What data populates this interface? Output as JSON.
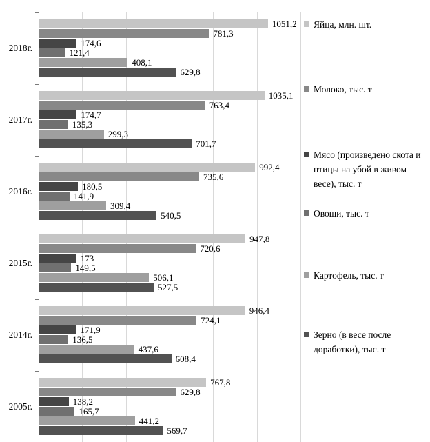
{
  "chart_data": {
    "type": "bar",
    "orientation": "horizontal",
    "title": "",
    "xlabel": "",
    "ylabel": "",
    "xlim": [
      0,
      1200
    ],
    "gridline_step": 200,
    "grid": "vertical gridlines on, light gray",
    "legend_position": "right",
    "value_decimal_separator": ",",
    "categories": [
      "2018г.",
      "2017г.",
      "2016г.",
      "2015г.",
      "2014г.",
      "2005г."
    ],
    "series": [
      {
        "name": "Яйца, млн. шт.",
        "color": "#c5c5c5",
        "values": [
          1051.2,
          1035.1,
          992.4,
          947.8,
          946.4,
          767.8
        ],
        "labels": [
          "1051,2",
          "1035,1",
          "992,4",
          "947,8",
          "946,4",
          "767,8"
        ]
      },
      {
        "name": "Молоко, тыс. т",
        "color": "#888888",
        "values": [
          781.3,
          763.4,
          735.6,
          720.6,
          724.1,
          629.8
        ],
        "labels": [
          "781,3",
          "763,4",
          "735,6",
          "720,6",
          "724,1",
          "629,8"
        ]
      },
      {
        "name": "Мясо (произведено скота и птицы на убой в живом весе), тыс. т",
        "color": "#454545",
        "values": [
          174.6,
          174.7,
          180.5,
          173,
          171.9,
          138.2
        ],
        "labels": [
          "174,6",
          "174,7",
          "180,5",
          "173",
          "171,9",
          "138,2"
        ]
      },
      {
        "name": "Овощи, тыс. т",
        "color": "#707070",
        "values": [
          121.4,
          135.3,
          141.9,
          149.5,
          136.5,
          165.7
        ],
        "labels": [
          "121,4",
          "135,3",
          "141,9",
          "149,5",
          "136,5",
          "165,7"
        ]
      },
      {
        "name": "Картофель, тыс. т",
        "color": "#9f9f9f",
        "values": [
          408.1,
          299.3,
          309.4,
          506.1,
          437.6,
          441.2
        ],
        "labels": [
          "408,1",
          "299,3",
          "309,4",
          "506,1",
          "437,6",
          "441,2"
        ]
      },
      {
        "name": "Зерно (в весе после доработки), тыс. т",
        "color": "#525252",
        "values": [
          629.8,
          701.7,
          540.5,
          527.5,
          608.4,
          569.7
        ],
        "labels": [
          "629,8",
          "701,7",
          "540,5",
          "527,5",
          "608,4",
          "569,7"
        ]
      }
    ],
    "colors": {
      "background": "#ffffff",
      "gridline": "#d9d9d9",
      "axis": "#7a7a7a",
      "text": "#000000"
    }
  }
}
